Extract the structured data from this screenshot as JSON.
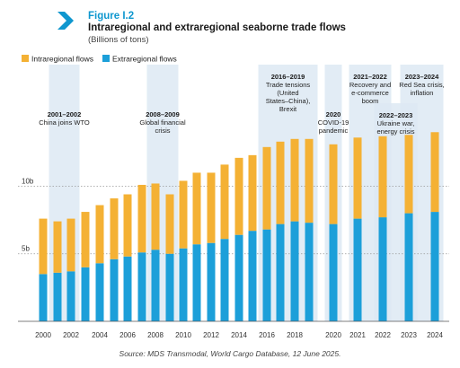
{
  "header": {
    "figure_label": "Figure I.2",
    "title": "Intraregional and extraregional seaborne trade flows",
    "subtitle": "(Billions of tons)"
  },
  "source": "Source: MDS Transmodal, World Cargo Database, 12 June 2025.",
  "colors": {
    "intraregional": "#f4b134",
    "extraregional": "#1c9fd9",
    "shade": "#dde9f3",
    "accent": "#0f97cf"
  },
  "chart_data": {
    "type": "bar",
    "stacked": true,
    "categories": [
      "2000",
      "2001",
      "2002",
      "2003",
      "2004",
      "2005",
      "2006",
      "2007",
      "2008",
      "2009",
      "2010",
      "2011",
      "2012",
      "2013",
      "2014",
      "2015",
      "2016",
      "2017",
      "2018",
      "2019",
      "2020",
      "2021",
      "2022",
      "2023",
      "2024"
    ],
    "x_tick_labels": [
      "2000",
      "2002",
      "2004",
      "2006",
      "2008",
      "2010",
      "2012",
      "2014",
      "2016",
      "2018",
      "2020",
      "2021",
      "2022",
      "2023",
      "2024"
    ],
    "series": [
      {
        "name": "Intraregional flows",
        "values": [
          4.1,
          3.8,
          3.9,
          4.1,
          4.3,
          4.5,
          4.6,
          5.0,
          4.9,
          4.4,
          5.0,
          5.3,
          5.2,
          5.5,
          5.7,
          5.6,
          6.1,
          6.1,
          6.1,
          6.2,
          5.9,
          6.0,
          6.0,
          5.8,
          5.9
        ]
      },
      {
        "name": "Extraregional flows",
        "values": [
          3.5,
          3.6,
          3.7,
          4.0,
          4.3,
          4.6,
          4.8,
          5.1,
          5.3,
          5.0,
          5.4,
          5.7,
          5.8,
          6.1,
          6.4,
          6.7,
          6.8,
          7.2,
          7.4,
          7.3,
          7.2,
          7.6,
          7.7,
          8.0,
          8.1
        ]
      }
    ],
    "y_ticks": [
      {
        "value": 5,
        "label": "5b"
      },
      {
        "value": 10,
        "label": "10b"
      }
    ],
    "ylim": [
      0,
      19
    ],
    "legend_position": "top-left",
    "periods": [
      {
        "from": "2001",
        "to": "2002",
        "title": "2001–2002",
        "text": [
          "China joins WTO"
        ],
        "text_level": "low"
      },
      {
        "from": "2008",
        "to": "2009",
        "title": "2008–2009",
        "text": [
          "Global financial",
          "crisis"
        ],
        "text_level": "low"
      },
      {
        "from": "2016",
        "to": "2019",
        "title": "2016–2019",
        "text": [
          "Trade tensions",
          "(United",
          "States–China),",
          "Brexit"
        ],
        "text_level": "top"
      },
      {
        "from": "2020",
        "to": "2020",
        "title": "2020",
        "text": [
          "COVID-19",
          "pandemic"
        ],
        "text_level": "low"
      },
      {
        "from": "2021",
        "to": "2022",
        "title": "2021–2022",
        "text": [
          "Recovery and",
          "e-commerce",
          "boom"
        ],
        "text_level": "top"
      },
      {
        "from": "2022",
        "to": "2023",
        "title": "2022–2023",
        "text": [
          "Ukraine war,",
          "energy crisis"
        ],
        "text_level": "mid"
      },
      {
        "from": "2023",
        "to": "2024",
        "title": "2023–2024",
        "text": [
          "Red Sea crisis,",
          "inflation"
        ],
        "text_level": "top"
      }
    ]
  }
}
